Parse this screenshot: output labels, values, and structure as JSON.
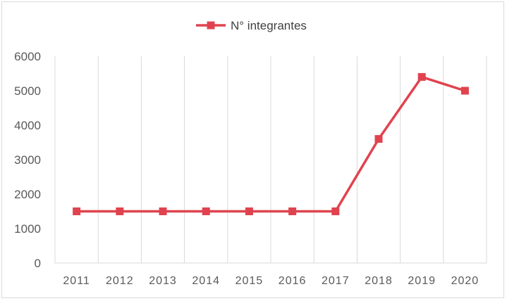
{
  "chart_data": {
    "type": "line",
    "legend_position": "top",
    "grid": {
      "horizontal": false,
      "vertical": true
    },
    "x": [
      "2011",
      "2012",
      "2013",
      "2014",
      "2015",
      "2016",
      "2017",
      "2018",
      "2019",
      "2020"
    ],
    "ylim": [
      0,
      6000
    ],
    "yticks": [
      "0",
      "1000",
      "2000",
      "3000",
      "4000",
      "5000",
      "6000"
    ],
    "series": [
      {
        "name": "N° integrantes",
        "color": "#e0434f",
        "marker": "square",
        "values": [
          1500,
          1500,
          1500,
          1500,
          1500,
          1500,
          1500,
          3600,
          5400,
          5000
        ]
      }
    ]
  }
}
